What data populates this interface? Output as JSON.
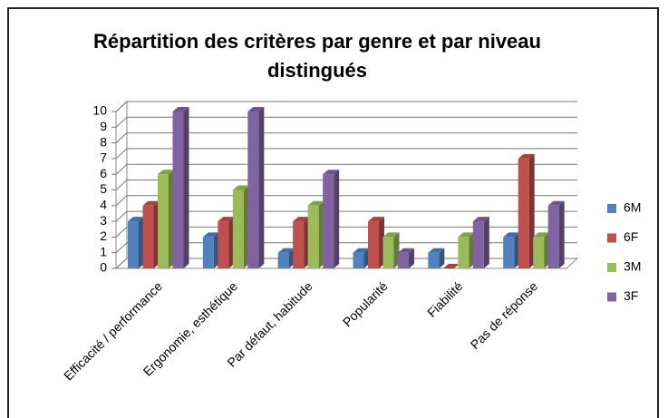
{
  "chart_data": {
    "type": "bar",
    "title": "Répartition des critères par genre et par niveau distingués",
    "categories": [
      "Efficacité / performance",
      "Ergonomie, esthétique",
      "Par défaut, habitude",
      "Popularité",
      "Fiabilité",
      "Pas de réponse"
    ],
    "series": [
      {
        "name": "6M",
        "color": "#4f81bd",
        "values": [
          3,
          2,
          1,
          1,
          1,
          2
        ]
      },
      {
        "name": "6F",
        "color": "#c0504d",
        "values": [
          4,
          3,
          3,
          3,
          0,
          7
        ]
      },
      {
        "name": "3M",
        "color": "#9bbb59",
        "values": [
          6,
          5,
          4,
          2,
          2,
          2
        ]
      },
      {
        "name": "3F",
        "color": "#8064a2",
        "values": [
          10,
          10,
          6,
          1,
          3,
          4
        ]
      }
    ],
    "ylim": [
      0,
      10
    ],
    "yticks": [
      0,
      1,
      2,
      3,
      4,
      5,
      6,
      7,
      8,
      9,
      10
    ],
    "grid": true,
    "legend": "right"
  }
}
